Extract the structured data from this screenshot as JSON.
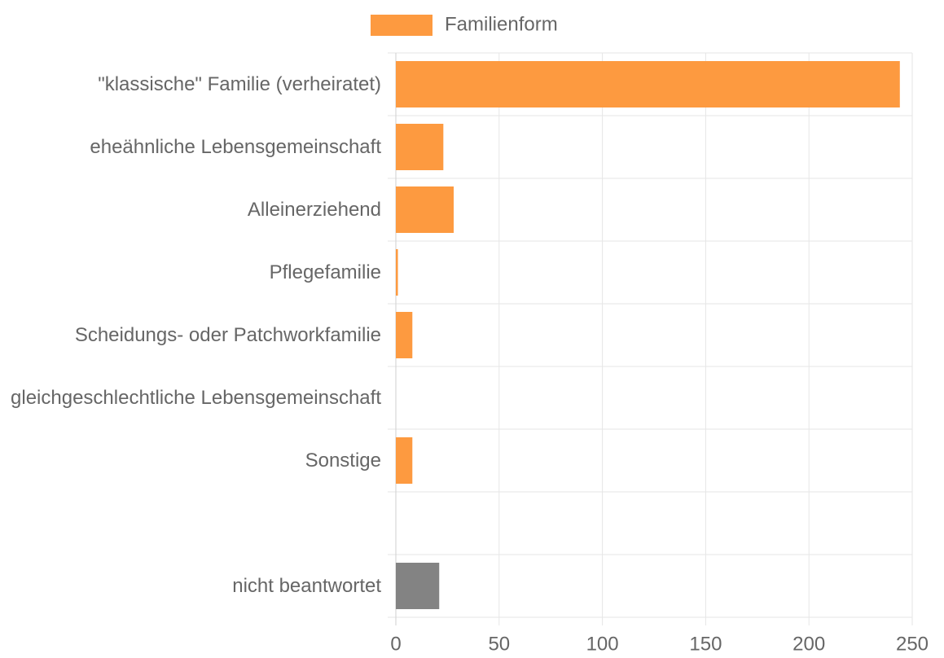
{
  "chart_data": {
    "type": "bar",
    "orientation": "horizontal",
    "categories": [
      "\"klassische\" Familie (verheiratet)",
      "eheähnliche Lebensgemeinschaft",
      "Alleinerziehend",
      "Pflegefamilie",
      "Scheidungs- oder Patchworkfamilie",
      "gleichgeschlechtliche Lebensgemeinschaft",
      "Sonstige",
      null,
      "nicht beantwortet"
    ],
    "series": [
      {
        "name": "Familienform",
        "color": "#fd9a40",
        "values": [
          244,
          23,
          28,
          1,
          8,
          0,
          8,
          null,
          21
        ],
        "bar_colors": [
          "#fd9a40",
          "#fd9a40",
          "#fd9a40",
          "#fd9a40",
          "#fd9a40",
          "#fd9a40",
          "#fd9a40",
          null,
          "#838383"
        ]
      }
    ],
    "xlim": [
      0,
      250
    ],
    "xticks": [
      0,
      50,
      100,
      150,
      200,
      250
    ],
    "grid": true,
    "legend": "top"
  }
}
